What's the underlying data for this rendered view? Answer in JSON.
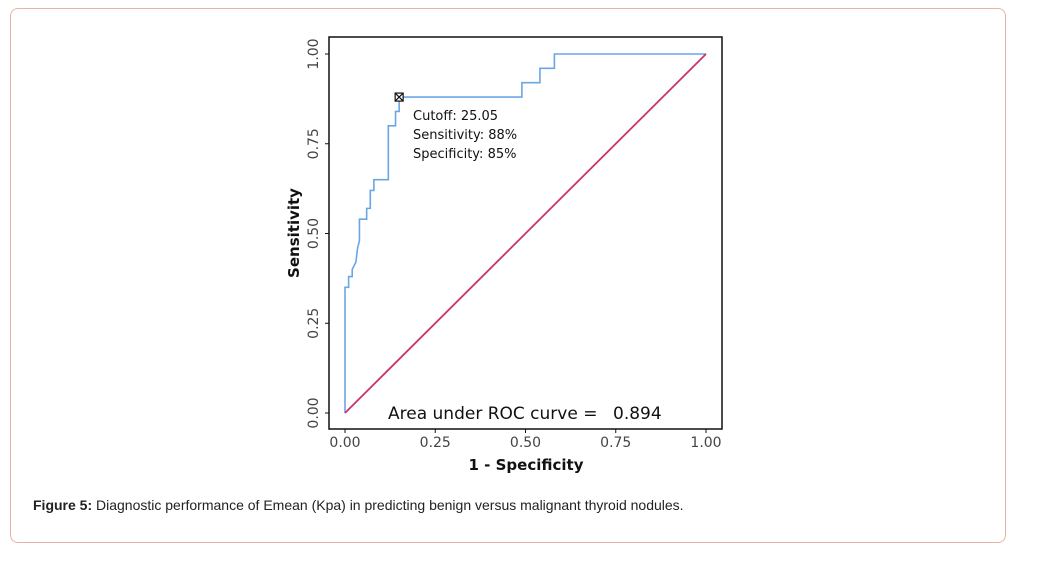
{
  "chart_data": {
    "type": "line",
    "ylabel": "Sensitivity",
    "xlabel": "1 - Specificity",
    "xlim": [
      0,
      1
    ],
    "ylim": [
      0,
      1
    ],
    "xticks": [
      "0.00",
      "0.25",
      "0.50",
      "0.75",
      "1.00"
    ],
    "yticks": [
      "0.00",
      "0.25",
      "0.50",
      "0.75",
      "1.00"
    ],
    "series": [
      {
        "name": "ROC curve",
        "color": "#6aa6e6",
        "x": [
          0.0,
          0.0,
          0.01,
          0.01,
          0.02,
          0.02,
          0.03,
          0.035,
          0.04,
          0.04,
          0.06,
          0.06,
          0.07,
          0.07,
          0.08,
          0.08,
          0.12,
          0.12,
          0.14,
          0.14,
          0.15,
          0.15,
          0.49,
          0.49,
          0.54,
          0.54,
          0.58,
          0.58,
          1.0
        ],
        "y": [
          0.0,
          0.35,
          0.35,
          0.38,
          0.38,
          0.4,
          0.42,
          0.46,
          0.48,
          0.54,
          0.54,
          0.57,
          0.57,
          0.62,
          0.62,
          0.65,
          0.65,
          0.8,
          0.8,
          0.84,
          0.84,
          0.88,
          0.88,
          0.92,
          0.92,
          0.96,
          0.96,
          1.0,
          1.0
        ]
      },
      {
        "name": "Reference line",
        "color": "#c8346b",
        "x": [
          0,
          1
        ],
        "y": [
          0,
          1
        ]
      }
    ],
    "cutoff_point": {
      "x": 0.15,
      "y": 0.88
    },
    "annotations": {
      "cutoff": "Cutoff: 25.05",
      "sensitivity": "Sensitivity: 88%",
      "specificity": "Specificity: 85%",
      "auc_label": "Area under ROC curve =",
      "auc_value": "0.894"
    }
  },
  "caption": {
    "label": "Figure 5:",
    "text": " Diagnostic performance of Emean (Kpa) in predicting benign versus malignant thyroid nodules."
  }
}
